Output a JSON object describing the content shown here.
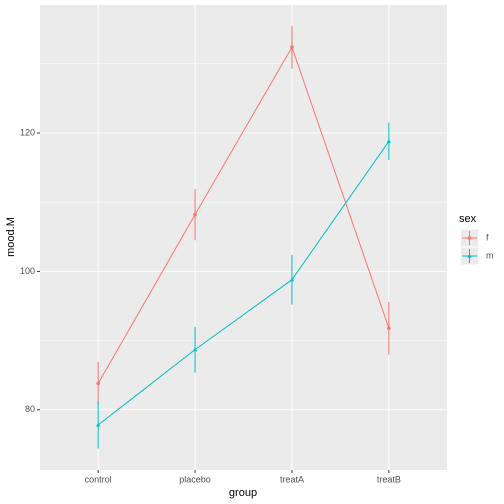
{
  "chart_data": {
    "type": "line",
    "x_label": "group",
    "y_label": "mood.M",
    "categories": [
      "control",
      "placebo",
      "treatA",
      "treatB"
    ],
    "series": [
      {
        "name": "f",
        "color": "#F8766D",
        "values": [
          83.8,
          108.2,
          132.4,
          91.8
        ],
        "errors": [
          3.1,
          3.7,
          3.1,
          3.8
        ]
      },
      {
        "name": "m",
        "color": "#00BFC4",
        "values": [
          77.8,
          88.7,
          98.8,
          118.8
        ],
        "errors": [
          3.4,
          3.3,
          3.6,
          2.7
        ]
      }
    ],
    "legend_title": "sex",
    "legend_position": "right",
    "ylim": [
      71.3,
      138.5
    ],
    "yticks": [
      80,
      100,
      120
    ],
    "grid": true
  }
}
